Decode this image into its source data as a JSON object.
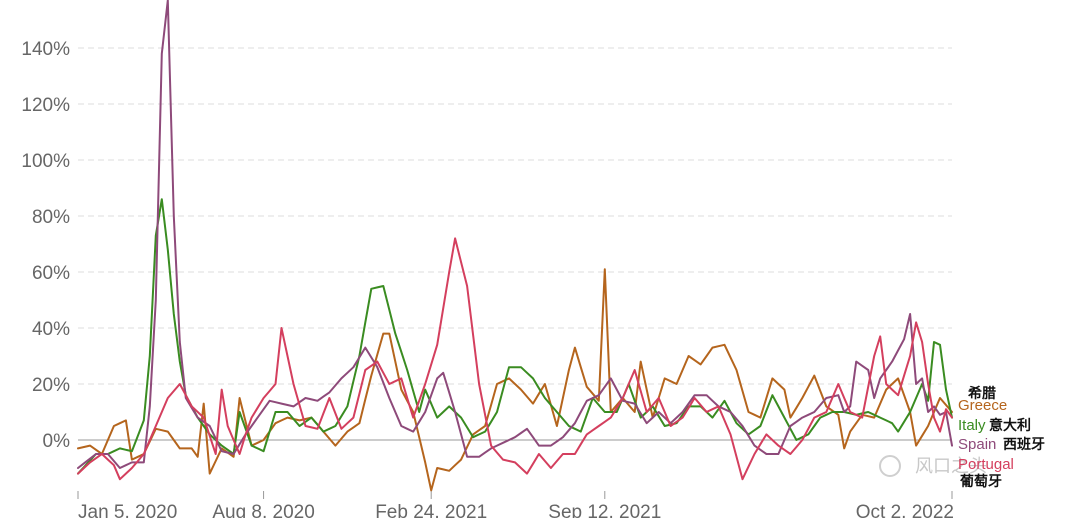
{
  "chart_data": {
    "type": "line",
    "x_ticks": [
      "Jan 5, 2020",
      "Aug 8, 2020",
      "Feb 24, 2021",
      "Sep 12, 2021",
      "Oct 2, 2022"
    ],
    "y_ticks": [
      "0%",
      "20%",
      "40%",
      "60%",
      "80%",
      "100%",
      "120%",
      "140%"
    ],
    "ylim": [
      -18,
      155
    ],
    "grid": true,
    "weeks": 147,
    "series": [
      {
        "name": "Greece",
        "color": "#b5651d",
        "label_annotation": "希腊",
        "keypoints": [
          [
            0,
            -3
          ],
          [
            2,
            -2
          ],
          [
            4,
            -5
          ],
          [
            6,
            5
          ],
          [
            8,
            7
          ],
          [
            9,
            -7
          ],
          [
            11,
            -5
          ],
          [
            13,
            4
          ],
          [
            15,
            3
          ],
          [
            17,
            -3
          ],
          [
            19,
            -3
          ],
          [
            20,
            -6
          ],
          [
            21,
            13
          ],
          [
            22,
            -12
          ],
          [
            24,
            -3
          ],
          [
            26,
            -6
          ],
          [
            27,
            15
          ],
          [
            29,
            -2
          ],
          [
            31,
            0
          ],
          [
            33,
            6
          ],
          [
            35,
            8
          ],
          [
            37,
            7
          ],
          [
            39,
            8
          ],
          [
            41,
            3
          ],
          [
            43,
            -2
          ],
          [
            45,
            3
          ],
          [
            47,
            6
          ],
          [
            49,
            23
          ],
          [
            51,
            38
          ],
          [
            52,
            38
          ],
          [
            54,
            18
          ],
          [
            56,
            10
          ],
          [
            58,
            -8
          ],
          [
            59,
            -18
          ],
          [
            60,
            -10
          ],
          [
            62,
            -11
          ],
          [
            64,
            -7
          ],
          [
            66,
            2
          ],
          [
            68,
            5
          ],
          [
            70,
            20
          ],
          [
            72,
            22
          ],
          [
            74,
            18
          ],
          [
            76,
            13
          ],
          [
            78,
            20
          ],
          [
            80,
            5
          ],
          [
            82,
            25
          ],
          [
            83,
            33
          ],
          [
            85,
            19
          ],
          [
            87,
            14
          ],
          [
            88,
            61
          ],
          [
            89,
            10
          ],
          [
            91,
            15
          ],
          [
            93,
            10
          ],
          [
            94,
            28
          ],
          [
            96,
            8
          ],
          [
            98,
            22
          ],
          [
            100,
            20
          ],
          [
            102,
            30
          ],
          [
            104,
            27
          ],
          [
            106,
            33
          ],
          [
            108,
            34
          ],
          [
            110,
            25
          ],
          [
            112,
            10
          ],
          [
            114,
            8
          ],
          [
            116,
            22
          ],
          [
            118,
            18
          ],
          [
            119,
            8
          ],
          [
            121,
            15
          ],
          [
            123,
            23
          ],
          [
            125,
            12
          ],
          [
            127,
            9
          ],
          [
            128,
            -3
          ],
          [
            129,
            3
          ],
          [
            131,
            9
          ],
          [
            133,
            8
          ],
          [
            135,
            18
          ],
          [
            137,
            22
          ],
          [
            139,
            10
          ],
          [
            140,
            -2
          ],
          [
            142,
            5
          ],
          [
            144,
            15
          ],
          [
            146,
            10
          ]
        ]
      },
      {
        "name": "Italy",
        "color": "#3a8c21",
        "label_annotation": "意大利",
        "keypoints": [
          [
            0,
            -12
          ],
          [
            3,
            -5
          ],
          [
            5,
            -5
          ],
          [
            7,
            -3
          ],
          [
            9,
            -4
          ],
          [
            11,
            7
          ],
          [
            12,
            30
          ],
          [
            13,
            73
          ],
          [
            14,
            86
          ],
          [
            15,
            68
          ],
          [
            16,
            45
          ],
          [
            17,
            28
          ],
          [
            18,
            16
          ],
          [
            20,
            8
          ],
          [
            22,
            2
          ],
          [
            24,
            -2
          ],
          [
            26,
            -5
          ],
          [
            27,
            10
          ],
          [
            29,
            -2
          ],
          [
            31,
            -4
          ],
          [
            33,
            10
          ],
          [
            35,
            10
          ],
          [
            37,
            5
          ],
          [
            39,
            8
          ],
          [
            41,
            3
          ],
          [
            43,
            5
          ],
          [
            45,
            12
          ],
          [
            47,
            30
          ],
          [
            49,
            54
          ],
          [
            51,
            55
          ],
          [
            53,
            38
          ],
          [
            55,
            25
          ],
          [
            57,
            10
          ],
          [
            58,
            18
          ],
          [
            60,
            8
          ],
          [
            62,
            12
          ],
          [
            64,
            8
          ],
          [
            66,
            1
          ],
          [
            68,
            3
          ],
          [
            70,
            10
          ],
          [
            72,
            26
          ],
          [
            74,
            26
          ],
          [
            76,
            22
          ],
          [
            78,
            15
          ],
          [
            80,
            10
          ],
          [
            82,
            5
          ],
          [
            84,
            3
          ],
          [
            86,
            15
          ],
          [
            88,
            10
          ],
          [
            90,
            10
          ],
          [
            92,
            20
          ],
          [
            94,
            8
          ],
          [
            96,
            12
          ],
          [
            98,
            5
          ],
          [
            100,
            6
          ],
          [
            102,
            12
          ],
          [
            104,
            12
          ],
          [
            106,
            8
          ],
          [
            108,
            14
          ],
          [
            110,
            6
          ],
          [
            112,
            2
          ],
          [
            114,
            5
          ],
          [
            116,
            16
          ],
          [
            118,
            8
          ],
          [
            120,
            0
          ],
          [
            122,
            2
          ],
          [
            124,
            8
          ],
          [
            126,
            10
          ],
          [
            128,
            10
          ],
          [
            130,
            9
          ],
          [
            132,
            10
          ],
          [
            134,
            8
          ],
          [
            136,
            6
          ],
          [
            137,
            3
          ],
          [
            139,
            10
          ],
          [
            141,
            20
          ],
          [
            142,
            14
          ],
          [
            143,
            35
          ],
          [
            144,
            34
          ],
          [
            145,
            18
          ],
          [
            146,
            8
          ]
        ]
      },
      {
        "name": "Spain",
        "color": "#8e4a7a",
        "label_annotation": "西班牙",
        "keypoints": [
          [
            0,
            -10
          ],
          [
            3,
            -5
          ],
          [
            5,
            -5
          ],
          [
            7,
            -10
          ],
          [
            9,
            -8
          ],
          [
            11,
            -8
          ],
          [
            12,
            12
          ],
          [
            13,
            50
          ],
          [
            14,
            138
          ],
          [
            15,
            157
          ],
          [
            16,
            80
          ],
          [
            17,
            35
          ],
          [
            18,
            15
          ],
          [
            20,
            8
          ],
          [
            22,
            5
          ],
          [
            24,
            -4
          ],
          [
            26,
            -5
          ],
          [
            28,
            2
          ],
          [
            30,
            8
          ],
          [
            32,
            14
          ],
          [
            34,
            13
          ],
          [
            36,
            12
          ],
          [
            38,
            15
          ],
          [
            40,
            14
          ],
          [
            42,
            17
          ],
          [
            44,
            22
          ],
          [
            46,
            26
          ],
          [
            48,
            33
          ],
          [
            50,
            26
          ],
          [
            52,
            15
          ],
          [
            54,
            5
          ],
          [
            56,
            3
          ],
          [
            58,
            10
          ],
          [
            60,
            22
          ],
          [
            61,
            24
          ],
          [
            63,
            10
          ],
          [
            65,
            -6
          ],
          [
            67,
            -6
          ],
          [
            69,
            -3
          ],
          [
            71,
            -1
          ],
          [
            73,
            1
          ],
          [
            75,
            4
          ],
          [
            77,
            -2
          ],
          [
            79,
            -2
          ],
          [
            81,
            1
          ],
          [
            83,
            6
          ],
          [
            85,
            14
          ],
          [
            87,
            16
          ],
          [
            89,
            22
          ],
          [
            91,
            14
          ],
          [
            93,
            13
          ],
          [
            95,
            6
          ],
          [
            97,
            10
          ],
          [
            99,
            6
          ],
          [
            101,
            10
          ],
          [
            103,
            16
          ],
          [
            105,
            16
          ],
          [
            107,
            12
          ],
          [
            109,
            10
          ],
          [
            111,
            5
          ],
          [
            113,
            -2
          ],
          [
            115,
            -5
          ],
          [
            117,
            -5
          ],
          [
            119,
            5
          ],
          [
            121,
            8
          ],
          [
            123,
            10
          ],
          [
            125,
            15
          ],
          [
            127,
            16
          ],
          [
            128,
            10
          ],
          [
            129,
            12
          ],
          [
            130,
            28
          ],
          [
            132,
            25
          ],
          [
            133,
            15
          ],
          [
            134,
            22
          ],
          [
            136,
            28
          ],
          [
            138,
            36
          ],
          [
            139,
            45
          ],
          [
            140,
            20
          ],
          [
            141,
            22
          ],
          [
            142,
            10
          ],
          [
            143,
            12
          ],
          [
            144,
            9
          ],
          [
            145,
            10
          ],
          [
            146,
            -2
          ]
        ]
      },
      {
        "name": "Portugal",
        "color": "#d43f5e",
        "label_annotation": "葡萄牙",
        "keypoints": [
          [
            0,
            -12
          ],
          [
            2,
            -8
          ],
          [
            4,
            -5
          ],
          [
            6,
            -9
          ],
          [
            7,
            -14
          ],
          [
            9,
            -10
          ],
          [
            11,
            -5
          ],
          [
            13,
            5
          ],
          [
            15,
            15
          ],
          [
            17,
            20
          ],
          [
            19,
            12
          ],
          [
            21,
            8
          ],
          [
            23,
            -5
          ],
          [
            24,
            18
          ],
          [
            25,
            5
          ],
          [
            27,
            -5
          ],
          [
            28,
            2
          ],
          [
            29,
            8
          ],
          [
            31,
            15
          ],
          [
            33,
            20
          ],
          [
            34,
            40
          ],
          [
            36,
            20
          ],
          [
            38,
            5
          ],
          [
            40,
            4
          ],
          [
            42,
            15
          ],
          [
            44,
            4
          ],
          [
            46,
            8
          ],
          [
            48,
            25
          ],
          [
            50,
            28
          ],
          [
            52,
            20
          ],
          [
            54,
            22
          ],
          [
            56,
            8
          ],
          [
            58,
            20
          ],
          [
            60,
            34
          ],
          [
            62,
            60
          ],
          [
            63,
            72
          ],
          [
            65,
            55
          ],
          [
            67,
            20
          ],
          [
            69,
            -2
          ],
          [
            71,
            -7
          ],
          [
            73,
            -8
          ],
          [
            75,
            -12
          ],
          [
            77,
            -5
          ],
          [
            79,
            -10
          ],
          [
            81,
            -5
          ],
          [
            83,
            -5
          ],
          [
            85,
            2
          ],
          [
            87,
            5
          ],
          [
            89,
            8
          ],
          [
            91,
            15
          ],
          [
            93,
            25
          ],
          [
            95,
            10
          ],
          [
            97,
            15
          ],
          [
            99,
            5
          ],
          [
            101,
            8
          ],
          [
            103,
            15
          ],
          [
            105,
            10
          ],
          [
            107,
            12
          ],
          [
            109,
            2
          ],
          [
            111,
            -14
          ],
          [
            113,
            -5
          ],
          [
            115,
            2
          ],
          [
            117,
            -2
          ],
          [
            119,
            -5
          ],
          [
            121,
            0
          ],
          [
            123,
            8
          ],
          [
            125,
            10
          ],
          [
            127,
            20
          ],
          [
            129,
            10
          ],
          [
            131,
            8
          ],
          [
            133,
            30
          ],
          [
            134,
            37
          ],
          [
            135,
            20
          ],
          [
            137,
            16
          ],
          [
            139,
            30
          ],
          [
            140,
            42
          ],
          [
            141,
            35
          ],
          [
            142,
            20
          ],
          [
            143,
            8
          ],
          [
            144,
            3
          ],
          [
            145,
            11
          ],
          [
            146,
            8
          ]
        ]
      }
    ]
  },
  "labels": {
    "greece_cn": "希腊",
    "greece": "Greece",
    "italy": "Italy",
    "italy_cn": "意大利",
    "spain": "Spain",
    "spain_cn": "西班牙",
    "portugal": "Portugal",
    "portugal_cn": "葡萄牙"
  },
  "watermark": "风口之头"
}
